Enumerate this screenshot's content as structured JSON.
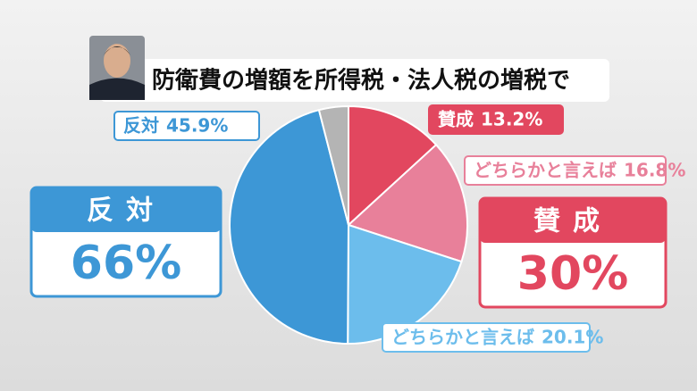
{
  "chart_data": {
    "type": "pie",
    "title": "防衛費の増額を所得税・法人税の増税で",
    "categories": [
      "賛成",
      "どちらかと言えば",
      "どちらかと言えば",
      "反対",
      null
    ],
    "values": [
      13.2,
      16.8,
      20.1,
      45.9,
      4.0
    ],
    "value_labels": [
      "13.2%",
      "16.8%",
      "20.1%",
      "45.9%",
      null
    ],
    "colors": [
      "#e2475f",
      "#e8809a",
      "#6cbdec",
      "#3d97d6",
      "#b4b4b4"
    ],
    "summaries": [
      {
        "label": "反対",
        "value": 66,
        "value_label": "66%",
        "color": "#3d97d6"
      },
      {
        "label": "賛成",
        "value": 30,
        "value_label": "30%",
        "color": "#e2475f"
      }
    ]
  }
}
